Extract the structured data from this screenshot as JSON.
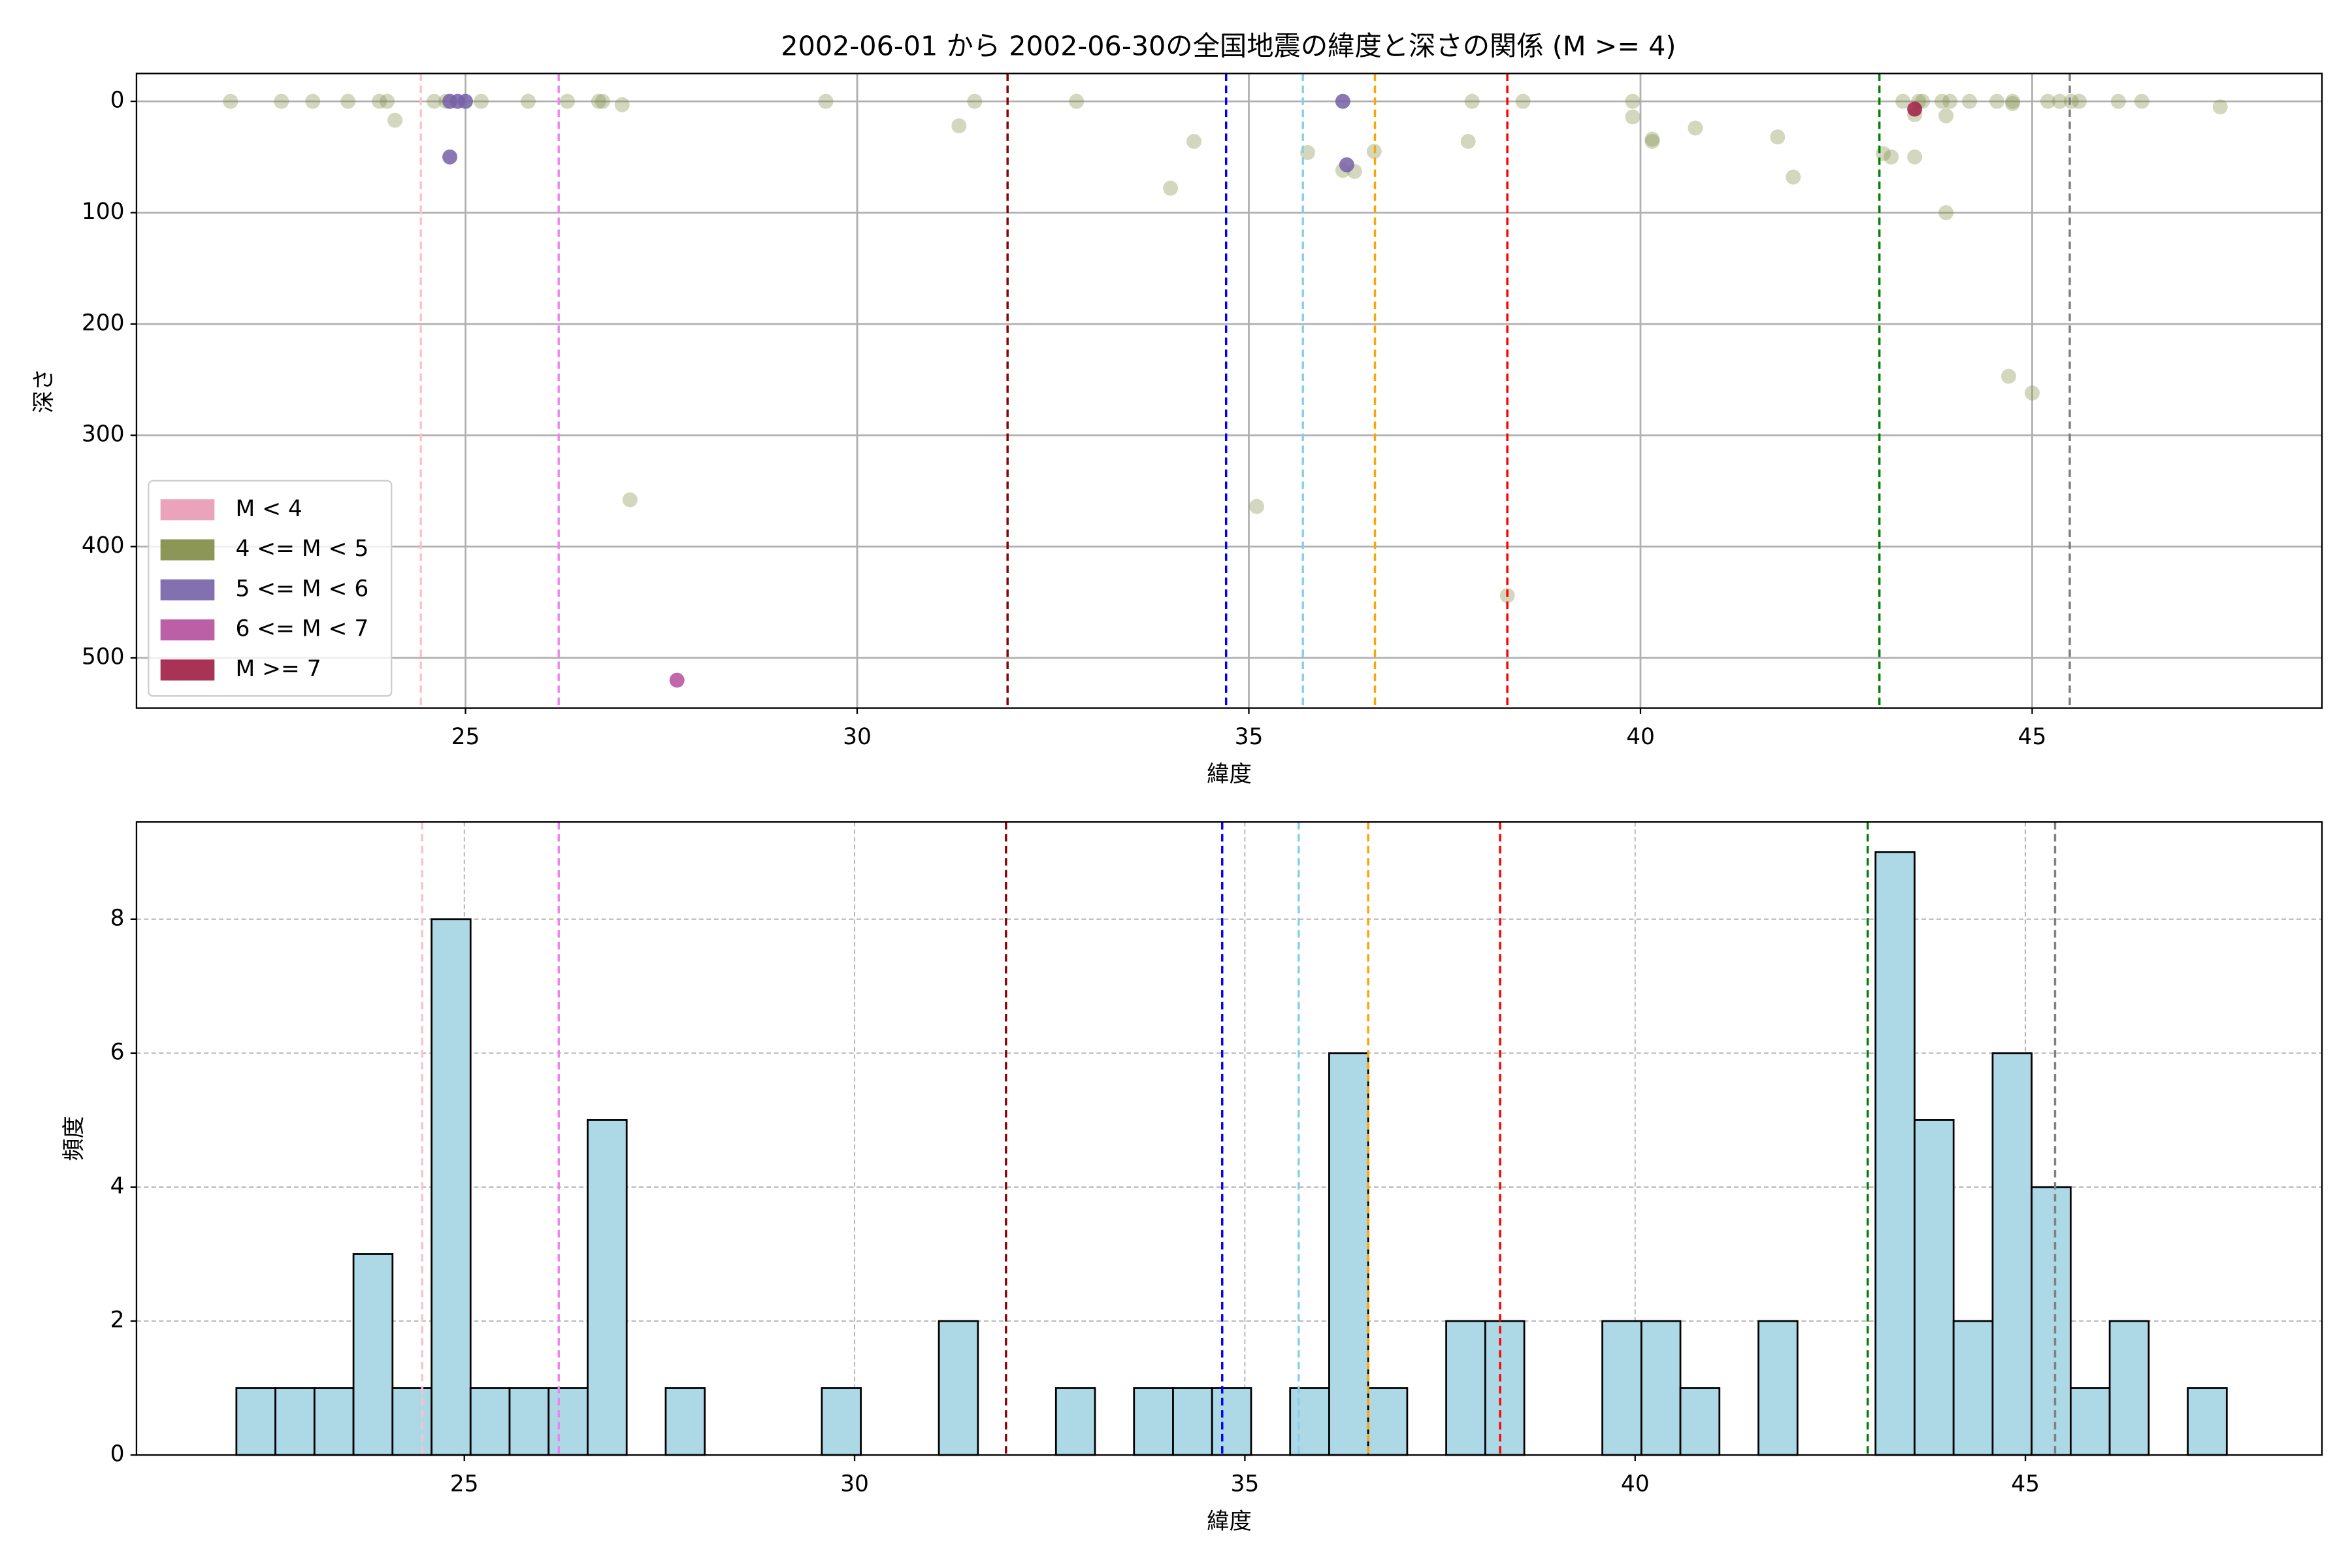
{
  "chart_data": [
    {
      "type": "scatter",
      "title": "2002-06-01 から 2002-06-30の全国地震の緯度と深さの関係 (M >= 4)",
      "x_label": "緯度",
      "y_label": "深さ",
      "xlim": [
        20.8,
        48.7
      ],
      "ylim": [
        545,
        -25
      ],
      "xticks": [
        25,
        30,
        35,
        40,
        45
      ],
      "yticks": [
        0,
        100,
        200,
        300,
        400,
        500
      ],
      "grid": true,
      "grid_style": "solid",
      "legend": "lower left",
      "series": [
        {
          "name": "M < 4",
          "color": "#e899b4",
          "alpha": 0.4,
          "x": [],
          "values": []
        },
        {
          "name": "4 <= M < 5",
          "color": "#7f8c45",
          "alpha": 0.35,
          "x": [
            22.0,
            22.65,
            23.05,
            23.5,
            23.9,
            24.0,
            24.1,
            24.6,
            24.75,
            25.2,
            25.8,
            26.3,
            26.7,
            26.75,
            27.0,
            27.1,
            29.6,
            31.3,
            31.5,
            32.8,
            34.0,
            34.3,
            35.1,
            35.75,
            36.2,
            36.35,
            36.6,
            37.8,
            37.85,
            38.3,
            38.5,
            39.9,
            39.9,
            40.15,
            40.15,
            40.7,
            41.75,
            41.95,
            43.1,
            43.2,
            43.35,
            43.5,
            43.5,
            43.55,
            43.6,
            43.85,
            43.9,
            43.9,
            43.95,
            44.2,
            44.55,
            44.7,
            44.75,
            44.75,
            45.0,
            45.2,
            45.35,
            45.5,
            45.6,
            46.1,
            46.4,
            47.4
          ],
          "values": [
            0,
            0,
            0,
            0,
            0,
            0,
            17,
            0,
            0,
            0,
            0,
            0,
            0,
            0,
            3,
            358,
            0,
            22,
            0,
            0,
            78,
            36,
            364,
            46,
            62,
            63,
            45,
            36,
            0,
            444,
            0,
            0,
            14,
            34,
            36,
            24,
            32,
            68,
            47,
            50,
            0,
            12,
            50,
            0,
            0,
            0,
            100,
            13,
            0,
            0,
            0,
            247,
            0,
            2,
            262,
            0,
            0,
            0,
            0,
            0,
            0,
            5
          ]
        },
        {
          "name": "5 <= M < 6",
          "color": "#7560a8",
          "alpha": 0.85,
          "x": [
            24.8,
            24.9,
            25.0,
            24.8,
            36.2,
            36.25
          ],
          "values": [
            0,
            0,
            0,
            50,
            0,
            57
          ]
        },
        {
          "name": "6 <= M < 7",
          "color": "#b44f9d",
          "alpha": 0.85,
          "x": [
            27.7
          ],
          "values": [
            520
          ]
        },
        {
          "name": "M >= 7",
          "color": "#a01d45",
          "alpha": 0.85,
          "x": [
            43.5
          ],
          "values": [
            7
          ]
        }
      ],
      "reference_lines": [
        {
          "x": 24.43,
          "color": "pink"
        },
        {
          "x": 26.19,
          "color": "violet"
        },
        {
          "x": 31.92,
          "color": "darkred"
        },
        {
          "x": 34.71,
          "color": "blue"
        },
        {
          "x": 35.69,
          "color": "skyblue"
        },
        {
          "x": 36.61,
          "color": "orange"
        },
        {
          "x": 38.3,
          "color": "red"
        },
        {
          "x": 43.05,
          "color": "green"
        },
        {
          "x": 45.48,
          "color": "gray"
        }
      ]
    },
    {
      "type": "histogram",
      "x_label": "緯度",
      "y_label": "頻度",
      "xlim": [
        20.8,
        48.8
      ],
      "ylim": [
        0,
        9.45
      ],
      "xticks": [
        25,
        30,
        35,
        40,
        45
      ],
      "yticks": [
        0,
        2,
        4,
        6,
        8
      ],
      "grid": true,
      "grid_style": "dashed",
      "color": "#add8e6",
      "edge_color": "#000000",
      "bins": [
        22.08,
        22.58,
        23.08,
        23.58,
        24.08,
        24.58,
        25.08,
        25.58,
        26.08,
        26.58,
        27.08,
        27.58,
        28.08,
        28.58,
        29.08,
        29.58,
        30.08,
        30.58,
        31.08,
        31.58,
        32.08,
        32.58,
        33.08,
        33.58,
        34.08,
        34.58,
        35.08,
        35.58,
        36.08,
        36.58,
        37.08,
        37.58,
        38.08,
        38.58,
        39.08,
        39.58,
        40.08,
        40.58,
        41.08,
        41.58,
        42.08,
        42.58,
        43.08,
        43.58,
        44.08,
        44.58,
        45.08,
        45.58,
        46.08,
        46.58,
        47.08,
        47.58
      ],
      "values": [
        1,
        1,
        1,
        3,
        1,
        8,
        1,
        1,
        1,
        5,
        0,
        1,
        0,
        0,
        0,
        1,
        0,
        0,
        2,
        0,
        0,
        1,
        0,
        1,
        1,
        1,
        0,
        1,
        6,
        1,
        0,
        2,
        2,
        0,
        0,
        2,
        2,
        1,
        0,
        2,
        0,
        0,
        9,
        5,
        2,
        6,
        4,
        1,
        2,
        0,
        1
      ],
      "reference_lines": [
        {
          "x": 24.46,
          "color": "pink"
        },
        {
          "x": 26.21,
          "color": "violet"
        },
        {
          "x": 31.94,
          "color": "darkred"
        },
        {
          "x": 34.71,
          "color": "blue"
        },
        {
          "x": 35.69,
          "color": "skyblue"
        },
        {
          "x": 36.58,
          "color": "orange"
        },
        {
          "x": 38.27,
          "color": "red"
        },
        {
          "x": 42.98,
          "color": "green"
        },
        {
          "x": 45.38,
          "color": "gray"
        }
      ]
    }
  ]
}
